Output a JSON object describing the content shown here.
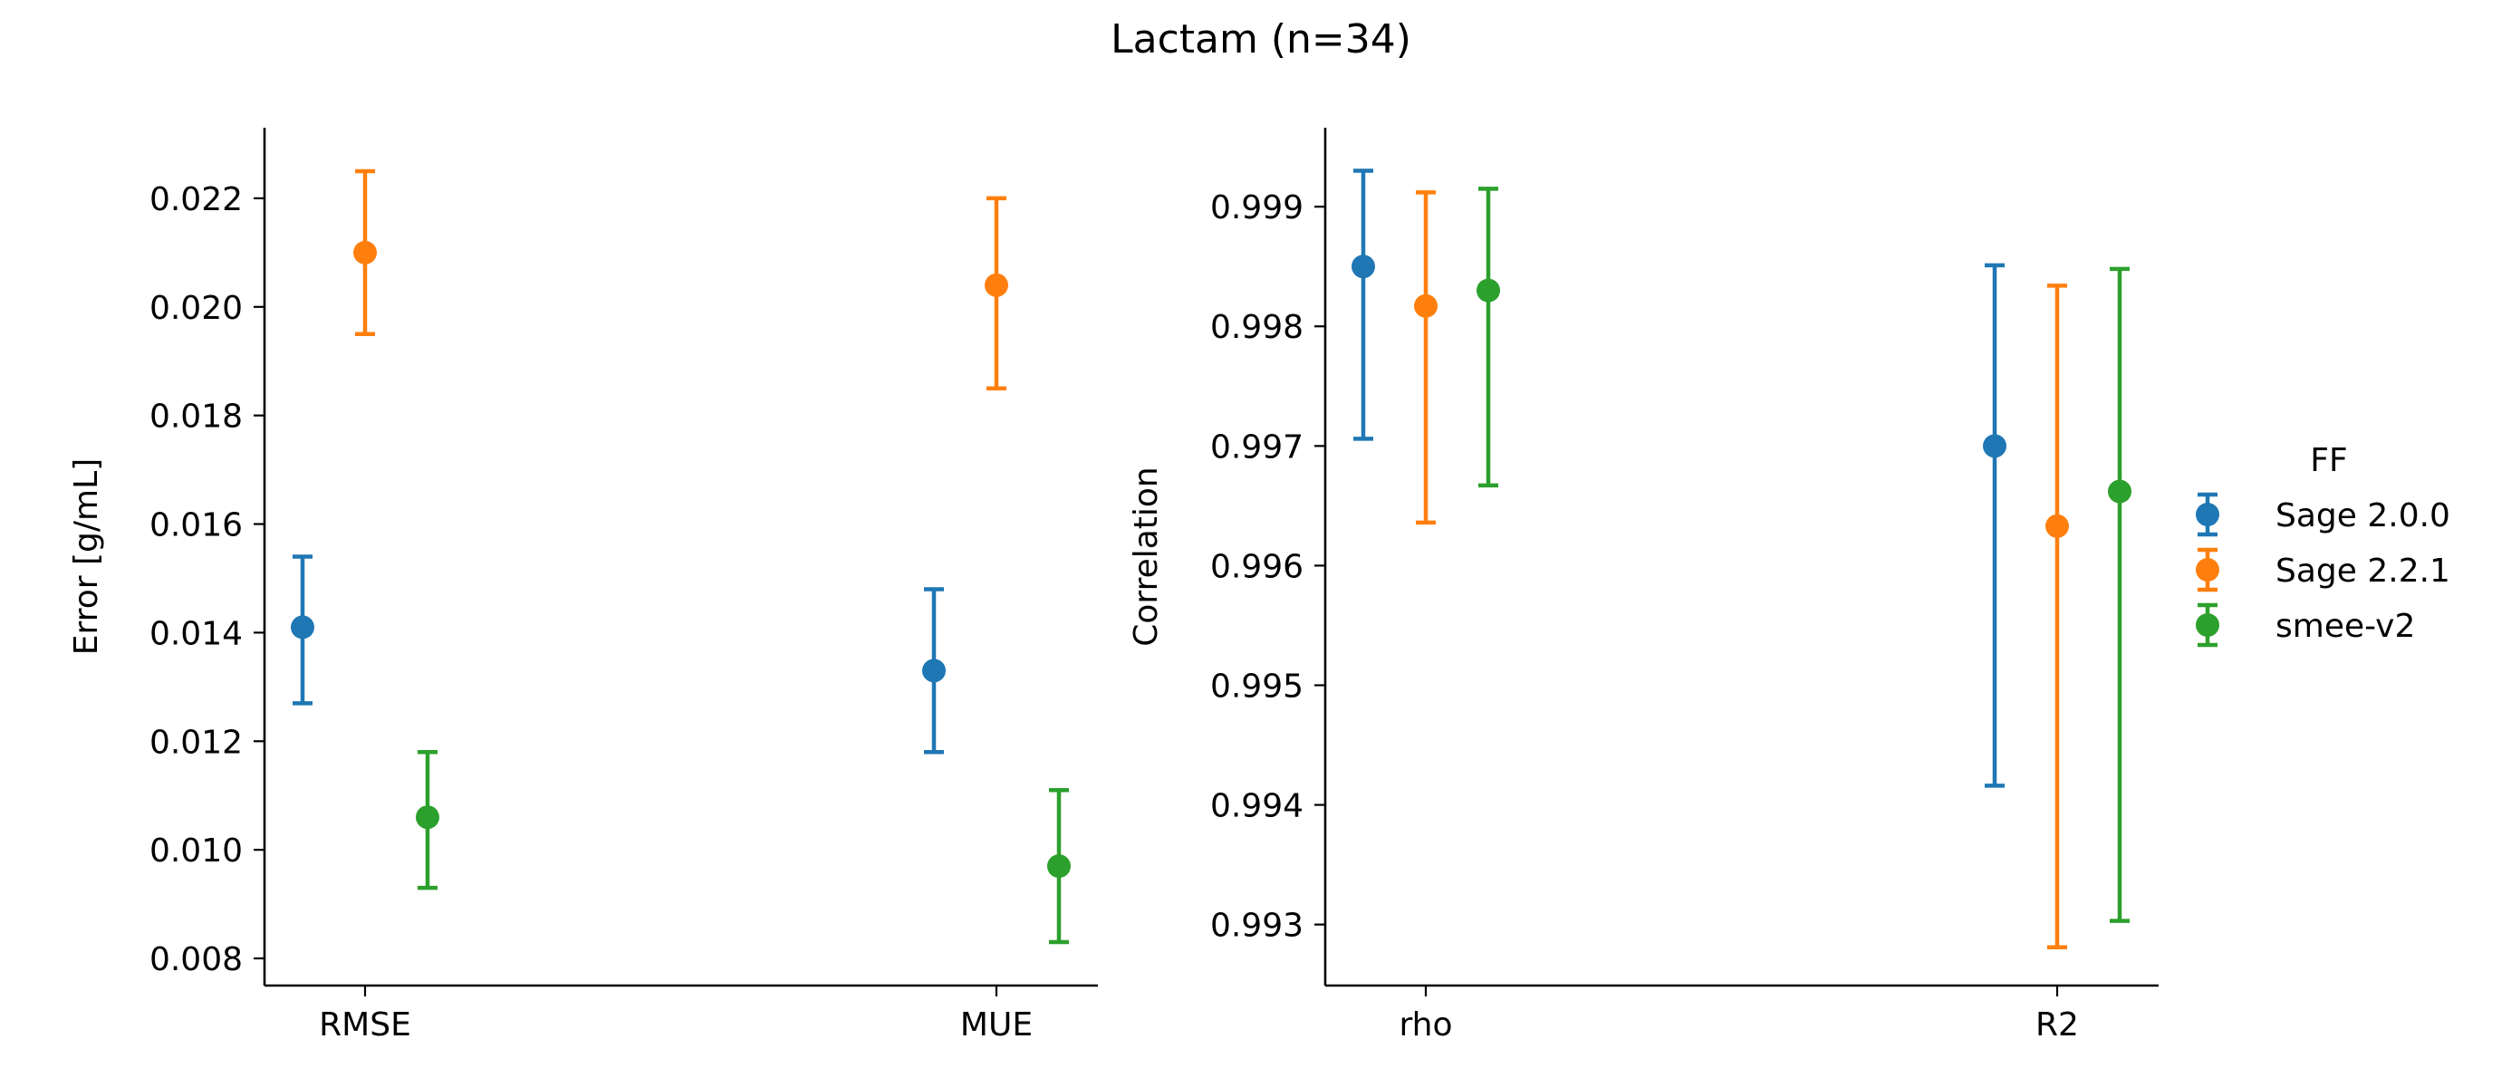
{
  "chart_data": {
    "title": "Lactam (n=34)",
    "legend": {
      "title": "FF",
      "placement": "right",
      "entries": [
        {
          "name": "Sage 2.0.0",
          "color": "#1f77b4"
        },
        {
          "name": "Sage 2.2.1",
          "color": "#ff7f0e"
        },
        {
          "name": "smee-v2",
          "color": "#2ca02c"
        }
      ]
    },
    "panels": [
      {
        "type": "errorbar",
        "ylabel": "Error [g/mL]",
        "ylim": [
          0.0075,
          0.0233
        ],
        "yticks": [
          {
            "value": 0.008,
            "label": "0.008"
          },
          {
            "value": 0.01,
            "label": "0.010"
          },
          {
            "value": 0.012,
            "label": "0.012"
          },
          {
            "value": 0.014,
            "label": "0.014"
          },
          {
            "value": 0.016,
            "label": "0.016"
          },
          {
            "value": 0.018,
            "label": "0.018"
          },
          {
            "value": 0.02,
            "label": "0.020"
          },
          {
            "value": 0.022,
            "label": "0.022"
          }
        ],
        "categories": [
          "RMSE",
          "MUE"
        ],
        "series": [
          {
            "name": "Sage 2.0.0",
            "points": [
              {
                "value": 0.0141,
                "low": 0.0127,
                "high": 0.0154
              },
              {
                "value": 0.0133,
                "low": 0.0118,
                "high": 0.0148
              }
            ]
          },
          {
            "name": "Sage 2.2.1",
            "points": [
              {
                "value": 0.021,
                "low": 0.0195,
                "high": 0.0225
              },
              {
                "value": 0.0204,
                "low": 0.0185,
                "high": 0.022
              }
            ]
          },
          {
            "name": "smee-v2",
            "points": [
              {
                "value": 0.0106,
                "low": 0.0093,
                "high": 0.0118
              },
              {
                "value": 0.0097,
                "low": 0.0083,
                "high": 0.0111
              }
            ]
          }
        ]
      },
      {
        "type": "errorbar",
        "ylabel": "Correlation",
        "ylim": [
          0.99249,
          0.99966
        ],
        "yticks": [
          {
            "value": 0.993,
            "label": "0.993"
          },
          {
            "value": 0.994,
            "label": "0.994"
          },
          {
            "value": 0.995,
            "label": "0.995"
          },
          {
            "value": 0.996,
            "label": "0.996"
          },
          {
            "value": 0.997,
            "label": "0.997"
          },
          {
            "value": 0.998,
            "label": "0.998"
          },
          {
            "value": 0.999,
            "label": "0.999"
          }
        ],
        "categories": [
          "rho",
          "R2"
        ],
        "series": [
          {
            "name": "Sage 2.0.0",
            "points": [
              {
                "value": 0.9985,
                "low": 0.99706,
                "high": 0.9993
              },
              {
                "value": 0.997,
                "low": 0.99416,
                "high": 0.99851
              }
            ]
          },
          {
            "name": "Sage 2.2.1",
            "points": [
              {
                "value": 0.99817,
                "low": 0.99636,
                "high": 0.99912
              },
              {
                "value": 0.99633,
                "low": 0.99281,
                "high": 0.99834
              }
            ]
          },
          {
            "name": "smee-v2",
            "points": [
              {
                "value": 0.9983,
                "low": 0.99667,
                "high": 0.99915
              },
              {
                "value": 0.99662,
                "low": 0.99303,
                "high": 0.99848
              }
            ]
          }
        ]
      }
    ]
  }
}
